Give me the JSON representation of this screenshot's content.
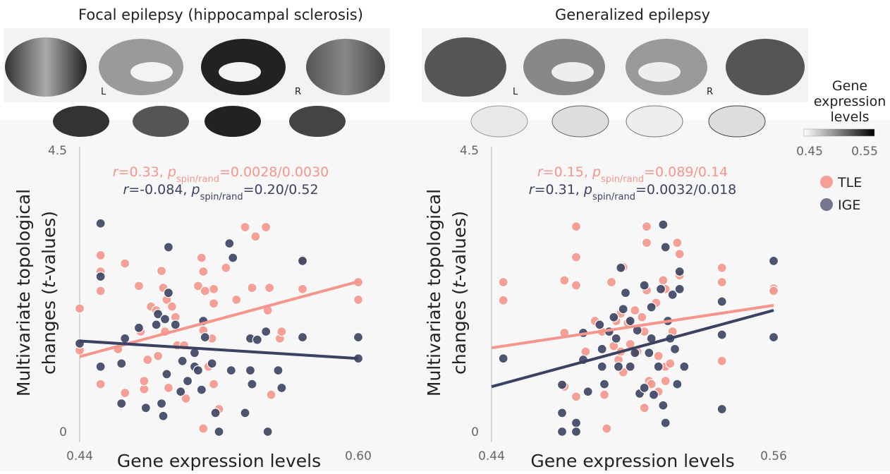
{
  "chart_data": [
    {
      "type": "scatter",
      "title": "Focal epilepsy (hippocampal sclerosis)",
      "hemisphere_labels": [
        "L",
        "R"
      ],
      "xlabel": "Gene expression levels",
      "ylabel": [
        "Multivariate topological",
        "changes (",
        "t",
        "-values)"
      ],
      "xlim": [
        0.44,
        0.6
      ],
      "xticks": [
        0.44,
        {
          "value": 0.6,
          "label": "0.60"
        }
      ],
      "ylim": [
        0,
        4.5
      ],
      "yticks": [
        0,
        4.5
      ],
      "series": [
        {
          "name": "TLE",
          "color": "#f4968b",
          "stats": [
            "r",
            "=0.33, ",
            "p",
            "spin/rand",
            "=0.0028/0.0030"
          ],
          "fit": {
            "x": [
              0.44,
              0.6
            ],
            "y": [
              1.2,
              2.4
            ]
          },
          "x": [
            0.44,
            0.44,
            0.452,
            0.452,
            0.452,
            0.452,
            0.466,
            0.466,
            0.474,
            0.477,
            0.479,
            0.477,
            0.481,
            0.484,
            0.487,
            0.488,
            0.489,
            0.49,
            0.491,
            0.493,
            0.495,
            0.496,
            0.501,
            0.508,
            0.51,
            0.511,
            0.511,
            0.512,
            0.514,
            0.516,
            0.517,
            0.517,
            0.517,
            0.52,
            0.524,
            0.53,
            0.535,
            0.539,
            0.541,
            0.547,
            0.548,
            0.549,
            0.55,
            0.555,
            0.556,
            0.568,
            0.568,
            0.6,
            0.6,
            0.511,
            0.5,
            0.485,
            0.475,
            0.462
          ],
          "values": [
            1.97,
            1.3,
            2.82,
            2.56,
            2.25,
            0.76,
            2.69,
            0.62,
            2.33,
            0.68,
            1.15,
            0.81,
            2.0,
            1.94,
            2.57,
            2.3,
            1.6,
            2.11,
            0.7,
            2.0,
            1.83,
            1.38,
            0.53,
            2.33,
            2.78,
            2.56,
            1.62,
            2.25,
            1.04,
            1.49,
            2.05,
            0.76,
            2.28,
            0.36,
            2.62,
            2.11,
            3.27,
            2.3,
            3.12,
            3.27,
            1.94,
            2.3,
            0.59,
            1.49,
            1.6,
            2.28,
            2.75,
            2.39,
            2.11,
            0.05,
            1.38,
            1.21,
            1.6,
            1.32
          ]
        },
        {
          "name": "IGE",
          "color": "#3b4262",
          "stats": [
            "r",
            "=-0.084, ",
            "p",
            "spin/rand",
            "=0.20/0.52"
          ],
          "fit": {
            "x": [
              0.44,
              0.6
            ],
            "y": [
              1.45,
              1.17
            ]
          },
          "x": [
            0.452,
            0.452,
            0.452,
            0.44,
            0.464,
            0.464,
            0.466,
            0.474,
            0.478,
            0.484,
            0.485,
            0.487,
            0.488,
            0.489,
            0.49,
            0.491,
            0.491,
            0.495,
            0.498,
            0.499,
            0.502,
            0.506,
            0.506,
            0.508,
            0.51,
            0.511,
            0.512,
            0.516,
            0.518,
            0.52,
            0.526,
            0.527,
            0.528,
            0.535,
            0.538,
            0.538,
            0.539,
            0.542,
            0.547,
            0.548,
            0.554,
            0.556,
            0.568,
            0.568,
            0.6,
            0.6
          ],
          "values": [
            3.33,
            2.48,
            1.04,
            1.41,
            1.09,
            0.45,
            1.49,
            1.66,
            0.38,
            1.71,
            1.88,
            0.45,
            0.25,
            1.8,
            0.92,
            2.95,
            2.22,
            1.71,
            0.64,
            1.13,
            0.81,
            1.26,
            1.04,
            0.98,
            0.67,
            1.77,
            1.51,
            1.09,
            0.3,
            0.0,
            3.01,
            0.98,
            2.78,
            0.3,
            0.98,
            1.49,
            0.76,
            1.47,
            1.6,
            0.0,
            0.98,
            0.7,
            1.51,
            2.73,
            1.51,
            1.17
          ]
        }
      ]
    },
    {
      "type": "scatter",
      "title": "Generalized epilepsy",
      "hemisphere_labels": [
        "L",
        "R"
      ],
      "xlabel": "Gene expression levels",
      "ylabel": [
        "Multivariate topological",
        "changes (",
        "t",
        "-values)"
      ],
      "xlim": [
        0.44,
        0.56
      ],
      "xticks": [
        0.44,
        0.56
      ],
      "ylim": [
        0,
        4.5
      ],
      "yticks": [
        0,
        4.5
      ],
      "legend": "right",
      "colorbar": {
        "title": [
          "Gene",
          "expression",
          "levels"
        ],
        "range": [
          0.45,
          0.55
        ],
        "ticks": [
          0.45,
          0.55
        ]
      },
      "series": [
        {
          "name": "TLE",
          "color": "#f4968b",
          "stats": [
            "r",
            "=0.15, ",
            "p",
            "spin/rand",
            "=0.089/0.14"
          ],
          "fit": {
            "x": [
              0.44,
              0.56
            ],
            "y": [
              1.34,
              2.02
            ]
          },
          "x": [
            0.445,
            0.445,
            0.471,
            0.471,
            0.471,
            0.476,
            0.476,
            0.476,
            0.476,
            0.48,
            0.484,
            0.487,
            0.488,
            0.489,
            0.491,
            0.492,
            0.493,
            0.494,
            0.495,
            0.496,
            0.496,
            0.498,
            0.499,
            0.501,
            0.502,
            0.504,
            0.505,
            0.505,
            0.506,
            0.506,
            0.506,
            0.507,
            0.508,
            0.51,
            0.511,
            0.511,
            0.513,
            0.514,
            0.514,
            0.516,
            0.517,
            0.519,
            0.52,
            0.52,
            0.538,
            0.538,
            0.538,
            0.56,
            0.56,
            0.514,
            0.495
          ],
          "values": [
            2.39,
            2.1,
            2.42,
            1.58,
            0.72,
            3.28,
            2.79,
            2.34,
            0.56,
            1.28,
            1.77,
            1.6,
            0.59,
            0.05,
            2.39,
            1.37,
            1.77,
            1.15,
            1.89,
            2.63,
            0.95,
            1.74,
            1.4,
            1.94,
            1.28,
            1.83,
            1.6,
            0.38,
            3.28,
            3.02,
            2.26,
            0.81,
            0.76,
            2.06,
            1.21,
            0.64,
            2.42,
            1.04,
            2.28,
            1.09,
            1.6,
            3.02,
            2.84,
            2.5,
            2.62,
            2.39,
            1.13,
            2.29,
            2.25,
            0.81,
            1.28
          ]
        },
        {
          "name": "IGE",
          "color": "#3b4262",
          "stats": [
            "r",
            "=0.31, ",
            "p",
            "spin/rand",
            "=0.0032/0.018"
          ],
          "fit": {
            "x": [
              0.44,
              0.56
            ],
            "y": [
              0.72,
              1.94
            ]
          },
          "x": [
            0.445,
            0.47,
            0.47,
            0.47,
            0.476,
            0.476,
            0.479,
            0.479,
            0.481,
            0.486,
            0.487,
            0.487,
            0.488,
            0.49,
            0.492,
            0.493,
            0.494,
            0.495,
            0.496,
            0.497,
            0.499,
            0.499,
            0.501,
            0.502,
            0.503,
            0.505,
            0.505,
            0.507,
            0.508,
            0.508,
            0.509,
            0.511,
            0.512,
            0.513,
            0.513,
            0.514,
            0.514,
            0.515,
            0.516,
            0.517,
            0.518,
            0.519,
            0.52,
            0.52,
            0.522,
            0.538,
            0.538,
            0.538,
            0.56,
            0.56
          ],
          "values": [
            1.17,
            0.75,
            0.3,
            0.0,
            0.14,
            0.0,
            1.58,
            1.15,
            0.64,
            1.71,
            1.04,
            1.32,
            0.76,
            1.6,
            1.83,
            1.49,
            1.04,
            2.62,
            1.96,
            2.22,
            1.77,
            1.04,
            1.26,
            1.62,
            0.61,
            0.7,
            2.34,
            1.26,
            1.99,
            1.49,
            0.59,
            1.04,
            2.28,
            3.31,
            0.42,
            0.14,
            2.95,
            1.77,
            1.49,
            2.19,
            1.32,
            0.76,
            2.28,
            2.56,
            1.04,
            1.55,
            0.36,
            2.08,
            2.73,
            1.51
          ]
        }
      ]
    }
  ]
}
